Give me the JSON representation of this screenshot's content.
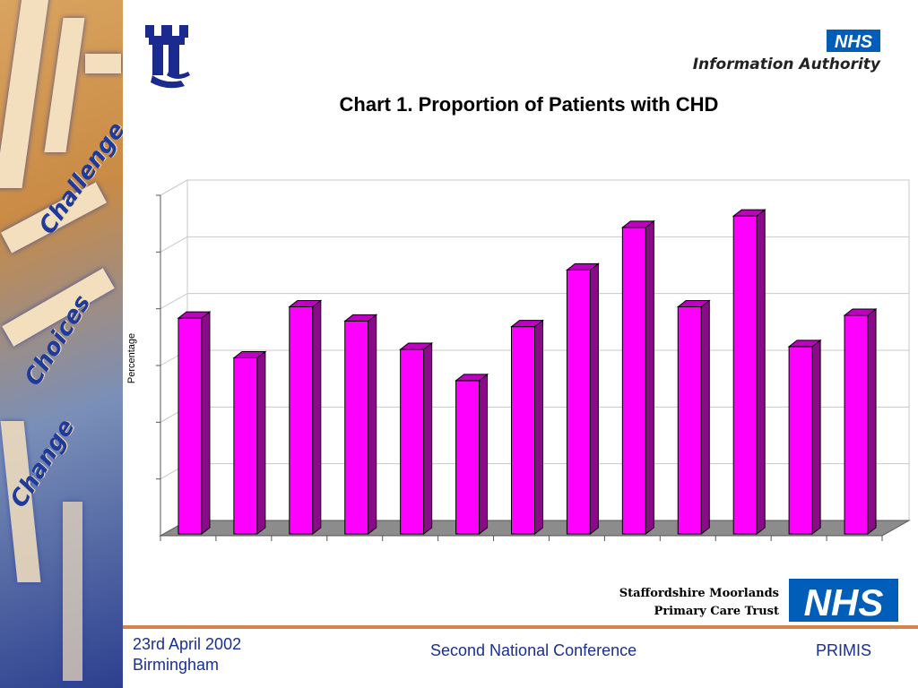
{
  "branding": {
    "ia_nhs_badge": "NHS",
    "ia_name": "Information Authority",
    "trust_line1": "Staffordshire Moorlands",
    "trust_line2": "Primary Care Trust",
    "trust_nhs_badge": "NHS",
    "nhs_blue": "#005eb8"
  },
  "side_panel": {
    "words": [
      "Challenge",
      "Choices",
      "Change"
    ]
  },
  "footer": {
    "date": "23rd April 2002",
    "city": "Birmingham",
    "conference": "Second National Conference",
    "organisation": "PRIMIS"
  },
  "chart_data": {
    "type": "bar",
    "title": "Chart 1. Proportion of Patients with CHD",
    "xlabel": "",
    "ylabel": "Percentage",
    "ylim": [
      0,
      6
    ],
    "grid": true,
    "style": "3d",
    "bar_color": "#ff00ff",
    "categories": [
      "",
      "",
      "",
      "",
      "",
      "",
      "",
      "",
      "",
      "",
      "",
      "",
      ""
    ],
    "values": [
      3.7,
      3.0,
      3.9,
      3.65,
      3.15,
      2.6,
      3.55,
      4.55,
      5.3,
      3.9,
      5.5,
      3.2,
      3.75
    ]
  }
}
